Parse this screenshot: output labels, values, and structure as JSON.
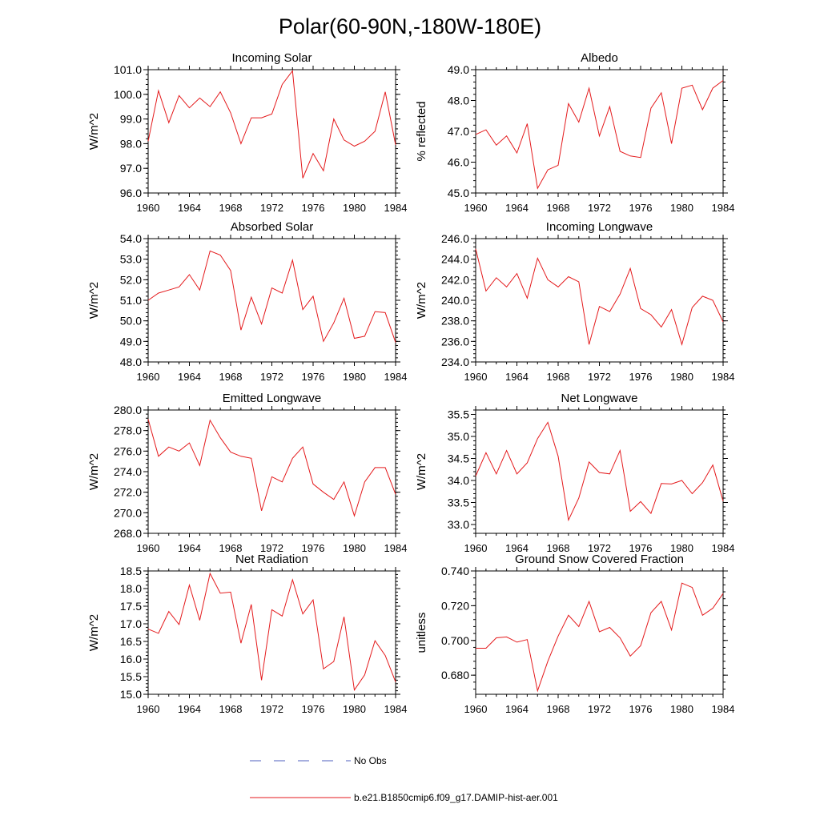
{
  "figure": {
    "title": "Polar(60-90N,-180W-180E)"
  },
  "legend": {
    "items": [
      {
        "label": "No Obs",
        "color": "#4f5fbf",
        "dashed": true
      },
      {
        "label": "b.e21.B1850cmip6.f09_g17.DAMIP-hist-aer.001",
        "color": "#e41a1c",
        "dashed": false
      }
    ]
  },
  "colors": {
    "series": "#e41a1c",
    "axis": "#000000"
  },
  "chart_data": [
    {
      "type": "line",
      "title": "Incoming Solar",
      "ylabel": "W/m^2",
      "xlim": [
        1960,
        1984
      ],
      "xticks": [
        1960,
        1964,
        1968,
        1972,
        1976,
        1980,
        1984
      ],
      "ylim": [
        96,
        101
      ],
      "yticks": [
        96,
        97,
        98,
        99,
        100,
        101
      ],
      "ydecimals": 1,
      "x": [
        1960,
        1961,
        1962,
        1963,
        1964,
        1965,
        1966,
        1967,
        1968,
        1969,
        1970,
        1971,
        1972,
        1973,
        1974,
        1975,
        1976,
        1977,
        1978,
        1979,
        1980,
        1981,
        1982,
        1983,
        1984
      ],
      "series": [
        {
          "name": "b.e21.B1850cmip6.f09_g17.DAMIP-hist-aer.001",
          "values": [
            98.1,
            100.15,
            98.85,
            99.95,
            99.45,
            99.85,
            99.5,
            100.1,
            99.25,
            98.0,
            99.05,
            99.05,
            99.2,
            100.4,
            100.95,
            96.6,
            97.6,
            96.9,
            99.0,
            98.15,
            97.9,
            98.1,
            98.5,
            100.1,
            97.95
          ]
        }
      ]
    },
    {
      "type": "line",
      "title": "Albedo",
      "ylabel": "% reflected",
      "xlim": [
        1960,
        1984
      ],
      "xticks": [
        1960,
        1964,
        1968,
        1972,
        1976,
        1980,
        1984
      ],
      "ylim": [
        45,
        49
      ],
      "yticks": [
        45,
        46,
        47,
        48,
        49
      ],
      "ydecimals": 1,
      "x": [
        1960,
        1961,
        1962,
        1963,
        1964,
        1965,
        1966,
        1967,
        1968,
        1969,
        1970,
        1971,
        1972,
        1973,
        1974,
        1975,
        1976,
        1977,
        1978,
        1979,
        1980,
        1981,
        1982,
        1983,
        1984
      ],
      "series": [
        {
          "name": "b.e21.B1850cmip6.f09_g17.DAMIP-hist-aer.001",
          "values": [
            46.9,
            47.05,
            46.55,
            46.85,
            46.3,
            47.25,
            45.15,
            45.75,
            45.9,
            47.9,
            47.3,
            48.4,
            46.85,
            47.8,
            46.35,
            46.2,
            46.15,
            47.75,
            48.25,
            46.6,
            48.4,
            48.5,
            47.7,
            48.4,
            48.65
          ]
        }
      ]
    },
    {
      "type": "line",
      "title": "Absorbed Solar",
      "ylabel": "W/m^2",
      "xlim": [
        1960,
        1984
      ],
      "xticks": [
        1960,
        1964,
        1968,
        1972,
        1976,
        1980,
        1984
      ],
      "ylim": [
        48,
        54
      ],
      "yticks": [
        48,
        49,
        50,
        51,
        52,
        53,
        54
      ],
      "ydecimals": 1,
      "x": [
        1960,
        1961,
        1962,
        1963,
        1964,
        1965,
        1966,
        1967,
        1968,
        1969,
        1970,
        1971,
        1972,
        1973,
        1974,
        1975,
        1976,
        1977,
        1978,
        1979,
        1980,
        1981,
        1982,
        1983,
        1984
      ],
      "series": [
        {
          "name": "b.e21.B1850cmip6.f09_g17.DAMIP-hist-aer.001",
          "values": [
            51.0,
            51.35,
            51.5,
            51.65,
            52.25,
            51.5,
            53.4,
            53.2,
            52.45,
            49.55,
            51.15,
            49.85,
            51.6,
            51.35,
            52.95,
            50.55,
            51.2,
            49.0,
            49.9,
            51.1,
            49.15,
            49.25,
            50.45,
            50.4,
            48.95
          ]
        }
      ]
    },
    {
      "type": "line",
      "title": "Incoming Longwave",
      "ylabel": "W/m^2",
      "xlim": [
        1960,
        1984
      ],
      "xticks": [
        1960,
        1964,
        1968,
        1972,
        1976,
        1980,
        1984
      ],
      "ylim": [
        234,
        246
      ],
      "yticks": [
        234,
        236,
        238,
        240,
        242,
        244,
        246
      ],
      "ydecimals": 1,
      "x": [
        1960,
        1961,
        1962,
        1963,
        1964,
        1965,
        1966,
        1967,
        1968,
        1969,
        1970,
        1971,
        1972,
        1973,
        1974,
        1975,
        1976,
        1977,
        1978,
        1979,
        1980,
        1981,
        1982,
        1983,
        1984
      ],
      "series": [
        {
          "name": "b.e21.B1850cmip6.f09_g17.DAMIP-hist-aer.001",
          "values": [
            245.0,
            240.9,
            242.2,
            241.3,
            242.6,
            240.2,
            244.1,
            242.0,
            241.3,
            242.3,
            241.8,
            235.7,
            239.4,
            238.9,
            240.6,
            243.1,
            239.2,
            238.6,
            237.4,
            239.1,
            235.7,
            239.3,
            240.4,
            240.0,
            237.9
          ]
        }
      ]
    },
    {
      "type": "line",
      "title": "Emitted Longwave",
      "ylabel": "W/m^2",
      "xlim": [
        1960,
        1984
      ],
      "xticks": [
        1960,
        1964,
        1968,
        1972,
        1976,
        1980,
        1984
      ],
      "ylim": [
        268,
        280
      ],
      "yticks": [
        268,
        270,
        272,
        274,
        276,
        278,
        280
      ],
      "ydecimals": 1,
      "x": [
        1960,
        1961,
        1962,
        1963,
        1964,
        1965,
        1966,
        1967,
        1968,
        1969,
        1970,
        1971,
        1972,
        1973,
        1974,
        1975,
        1976,
        1977,
        1978,
        1979,
        1980,
        1981,
        1982,
        1983,
        1984
      ],
      "series": [
        {
          "name": "b.e21.B1850cmip6.f09_g17.DAMIP-hist-aer.001",
          "values": [
            279.1,
            275.5,
            276.4,
            276.0,
            276.8,
            274.6,
            279.0,
            277.3,
            275.9,
            275.5,
            275.3,
            270.2,
            273.5,
            273.0,
            275.3,
            276.4,
            272.8,
            272.0,
            271.3,
            273.0,
            269.7,
            273.0,
            274.4,
            274.4,
            271.8
          ]
        }
      ]
    },
    {
      "type": "line",
      "title": "Net Longwave",
      "ylabel": "W/m^2",
      "xlim": [
        1960,
        1984
      ],
      "xticks": [
        1960,
        1964,
        1968,
        1972,
        1976,
        1980,
        1984
      ],
      "ylim": [
        32.8,
        35.6
      ],
      "yticks": [
        33.0,
        33.5,
        34.0,
        34.5,
        35.0,
        35.5
      ],
      "ydecimals": 1,
      "x": [
        1960,
        1961,
        1962,
        1963,
        1964,
        1965,
        1966,
        1967,
        1968,
        1969,
        1970,
        1971,
        1972,
        1973,
        1974,
        1975,
        1976,
        1977,
        1978,
        1979,
        1980,
        1981,
        1982,
        1983,
        1984
      ],
      "series": [
        {
          "name": "b.e21.B1850cmip6.f09_g17.DAMIP-hist-aer.001",
          "values": [
            34.1,
            34.63,
            34.15,
            34.68,
            34.15,
            34.4,
            34.95,
            35.32,
            34.55,
            33.1,
            33.6,
            34.42,
            34.18,
            34.15,
            34.68,
            33.3,
            33.52,
            33.25,
            33.93,
            33.92,
            34.0,
            33.7,
            33.95,
            34.35,
            33.53
          ]
        }
      ]
    },
    {
      "type": "line",
      "title": "Net Radiation",
      "ylabel": "W/m^2",
      "xlim": [
        1960,
        1984
      ],
      "xticks": [
        1960,
        1964,
        1968,
        1972,
        1976,
        1980,
        1984
      ],
      "ylim": [
        15,
        18.5
      ],
      "yticks": [
        15.0,
        15.5,
        16.0,
        16.5,
        17.0,
        17.5,
        18.0,
        18.5
      ],
      "ydecimals": 1,
      "x": [
        1960,
        1961,
        1962,
        1963,
        1964,
        1965,
        1966,
        1967,
        1968,
        1969,
        1970,
        1971,
        1972,
        1973,
        1974,
        1975,
        1976,
        1977,
        1978,
        1979,
        1980,
        1981,
        1982,
        1983,
        1984
      ],
      "series": [
        {
          "name": "b.e21.B1850cmip6.f09_g17.DAMIP-hist-aer.001",
          "values": [
            16.85,
            16.73,
            17.35,
            16.98,
            18.1,
            17.1,
            18.43,
            17.87,
            17.9,
            16.45,
            17.55,
            15.4,
            17.4,
            17.22,
            18.25,
            17.28,
            17.68,
            15.72,
            15.93,
            17.2,
            15.12,
            15.55,
            16.52,
            16.1,
            15.35
          ]
        }
      ]
    },
    {
      "type": "line",
      "title": "Ground Snow Covered Fraction",
      "ylabel": "unitless",
      "xlim": [
        1960,
        1984
      ],
      "xticks": [
        1960,
        1964,
        1968,
        1972,
        1976,
        1980,
        1984
      ],
      "ylim": [
        0.669,
        0.74
      ],
      "yticks": [
        0.68,
        0.7,
        0.72,
        0.74
      ],
      "ydecimals": 3,
      "x": [
        1960,
        1961,
        1962,
        1963,
        1964,
        1965,
        1966,
        1967,
        1968,
        1969,
        1970,
        1971,
        1972,
        1973,
        1974,
        1975,
        1976,
        1977,
        1978,
        1979,
        1980,
        1981,
        1982,
        1983,
        1984
      ],
      "series": [
        {
          "name": "b.e21.B1850cmip6.f09_g17.DAMIP-hist-aer.001",
          "values": [
            0.6955,
            0.6955,
            0.7015,
            0.702,
            0.699,
            0.7005,
            0.671,
            0.688,
            0.7025,
            0.7145,
            0.708,
            0.7225,
            0.705,
            0.7075,
            0.7015,
            0.691,
            0.697,
            0.716,
            0.7225,
            0.706,
            0.733,
            0.7305,
            0.7145,
            0.7185,
            0.727
          ]
        }
      ]
    }
  ]
}
